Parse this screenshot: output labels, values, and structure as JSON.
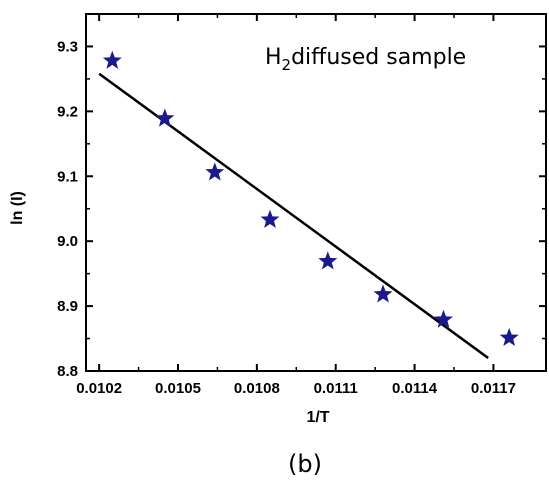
{
  "chart_data": {
    "type": "scatter",
    "xlabel": "1/T",
    "ylabel": "ln (I)",
    "xlim": [
      0.01015,
      0.0119
    ],
    "ylim": [
      8.8,
      9.35
    ],
    "x_ticks": [
      0.0102,
      0.0105,
      0.0108,
      0.0111,
      0.0114,
      0.0117
    ],
    "x_tick_labels": [
      "0.0102",
      "0.0105",
      "0.0108",
      "0.0111",
      "0.0114",
      "0.0117"
    ],
    "y_ticks": [
      8.8,
      8.9,
      9.0,
      9.1,
      9.2,
      9.3
    ],
    "y_tick_labels": [
      "8.8",
      "8.9",
      "9.0",
      "9.1",
      "9.2",
      "9.3"
    ],
    "annotation": {
      "main": "H",
      "subscript": "2",
      "rest": "diffused sample"
    },
    "panel_label": "(b)",
    "marker_color": "#1a1a8c",
    "line_color": "#000000",
    "points": {
      "x": [
        0.01025,
        0.01045,
        0.01064,
        0.01085,
        0.01107,
        0.01128,
        0.01151,
        0.01176
      ],
      "y": [
        9.278,
        9.189,
        9.106,
        9.033,
        8.969,
        8.918,
        8.879,
        8.851
      ]
    },
    "fit_line": {
      "x": [
        0.0102,
        0.01168
      ],
      "y": [
        9.258,
        8.82
      ]
    },
    "grid": false
  }
}
